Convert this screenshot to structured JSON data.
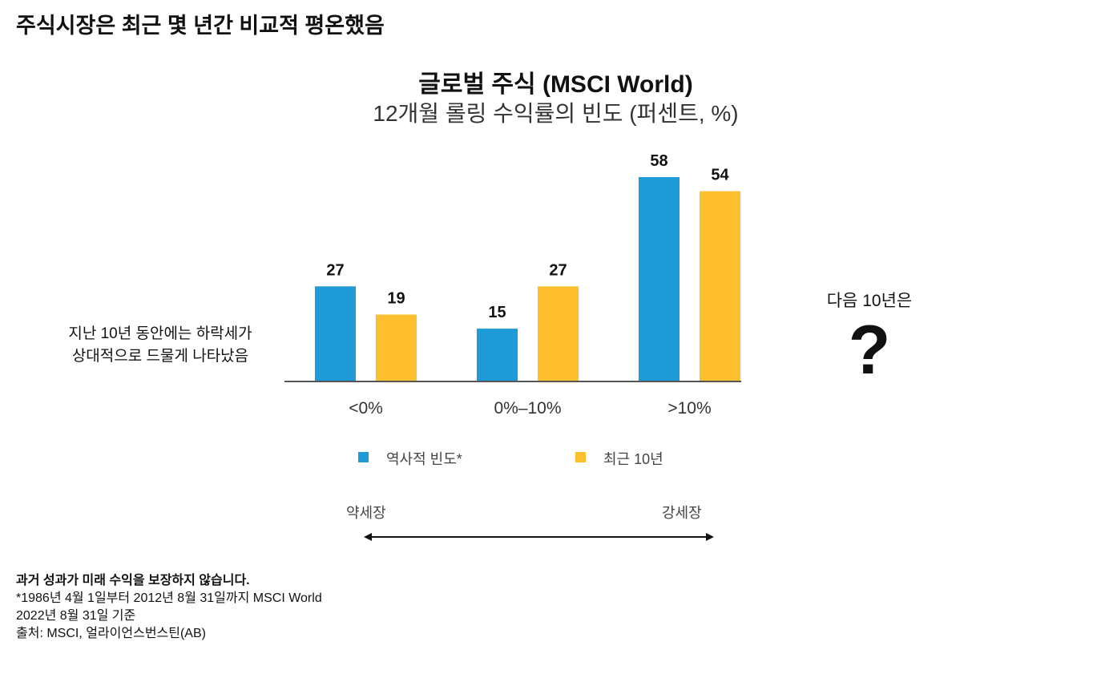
{
  "headline": "주식시장은 최근 몇 년간 비교적 평온했음",
  "chart_data": {
    "type": "bar",
    "title": "글로벌 주식 (MSCI World)",
    "subtitle": "12개월 롤링 수익률의 빈도 (퍼센트, %)",
    "categories": [
      "<0%",
      "0%–10%",
      ">10%"
    ],
    "series": [
      {
        "name": "역사적 빈도*",
        "values": [
          27,
          15,
          58
        ],
        "color": "#1f9bd7"
      },
      {
        "name": "최근 10년",
        "values": [
          19,
          27,
          54
        ],
        "color": "#fdbf2d"
      }
    ],
    "ylim": [
      0,
      58
    ],
    "grid": false,
    "legend": "bottom",
    "data_labels": true
  },
  "annotations": {
    "left_note": [
      "지난 10년 동안에는 하락세가",
      "상대적으로 드물게 나타났음"
    ],
    "right_note": "다음 10년은",
    "question_mark": "?",
    "arrow_left": "약세장",
    "arrow_right": "강세장"
  },
  "footnotes": {
    "disclaimer": "과거 성과가 미래 수익을 보장하지 않습니다.",
    "lines": [
      "*1986년 4월 1일부터 2012년 8월 31일까지 MSCI World",
      "2022년 8월 31일 기준",
      "출처: MSCI, 얼라이언스번스틴(AB)"
    ]
  }
}
